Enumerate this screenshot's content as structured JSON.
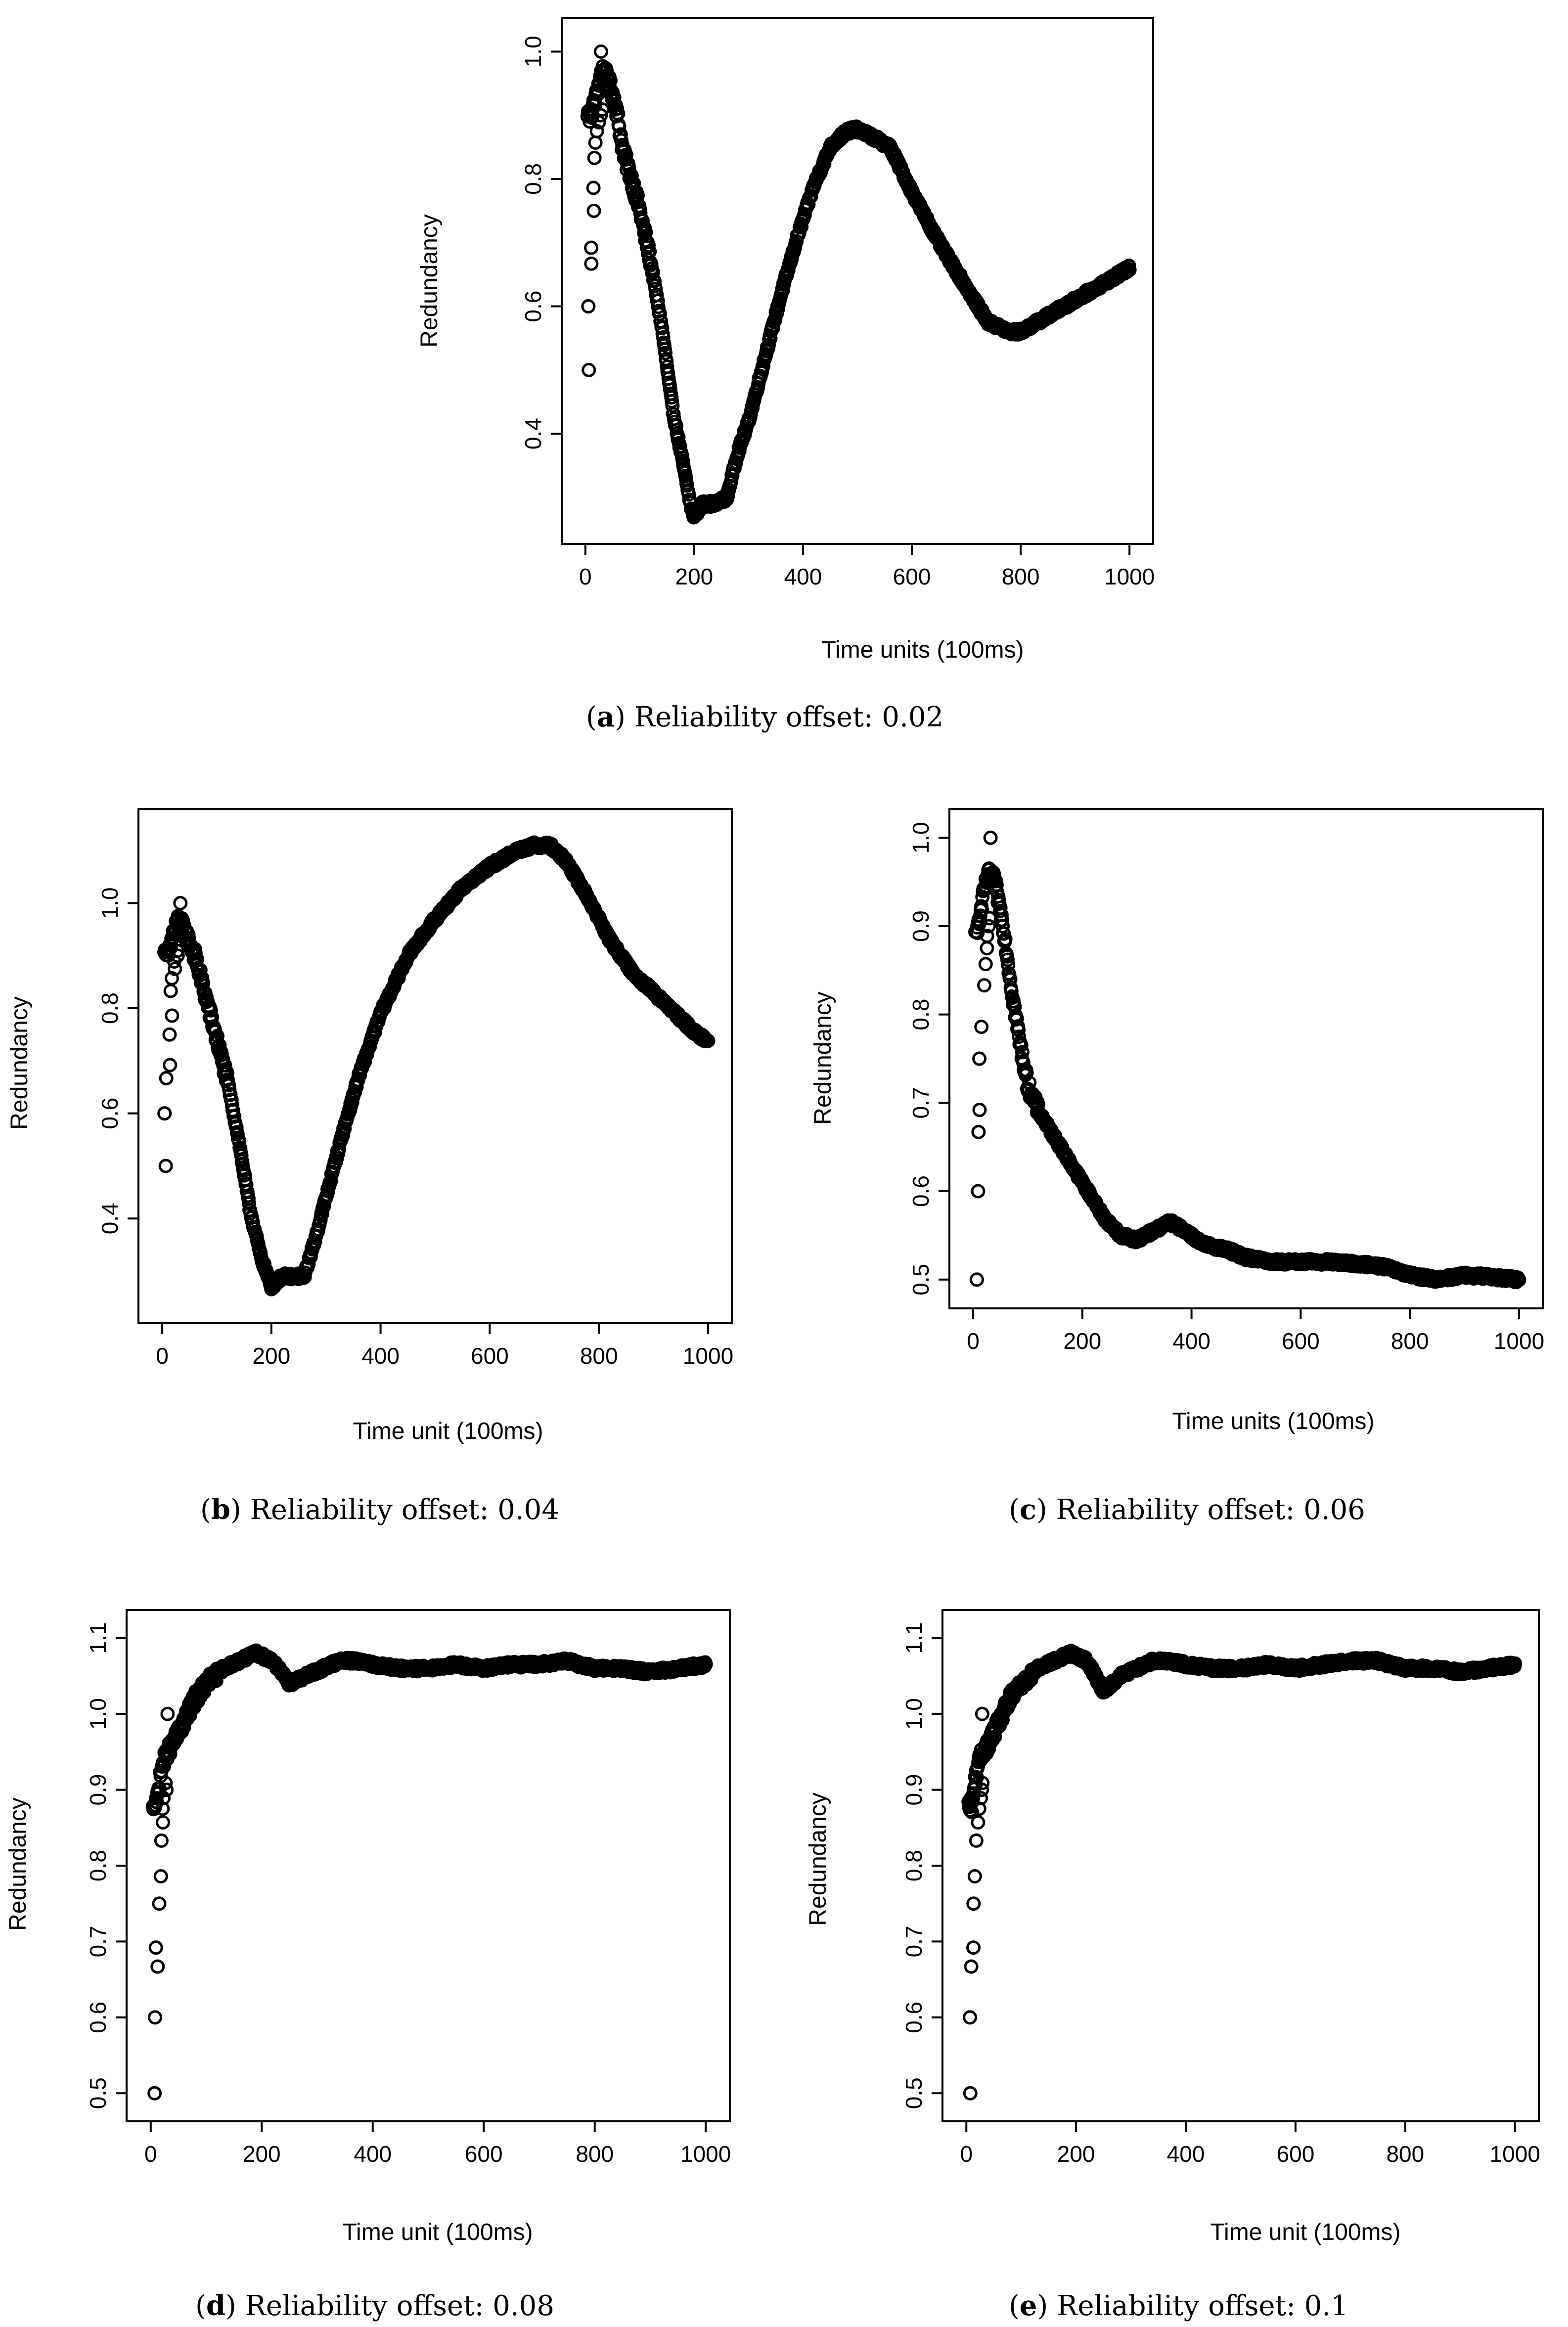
{
  "chart_data": [
    {
      "id": "a",
      "type": "scatter",
      "caption_tag": "a",
      "caption_text": "Reliability offset: 0.02",
      "xlabel": "Time units (100ms)",
      "ylabel": "Redundancy",
      "xlim": [
        0,
        1000
      ],
      "ylim": [
        0.26,
        1.02
      ],
      "xticks": [
        0,
        200,
        400,
        600,
        800,
        1000
      ],
      "yticks": [
        0.4,
        0.6,
        0.8,
        1.0
      ],
      "ytick_labels": [
        "0.4",
        "0.6",
        "0.8",
        "1.0"
      ],
      "early_values": [
        0.5,
        0.6,
        0.667,
        0.692,
        0.75,
        0.786,
        0.833,
        0.857,
        0.875,
        0.889,
        0.9,
        0.909,
        1.0
      ],
      "curve": [
        [
          10,
          0.9
        ],
        [
          20,
          0.93
        ],
        [
          30,
          0.97
        ],
        [
          40,
          0.96
        ],
        [
          55,
          0.92
        ],
        [
          70,
          0.84
        ],
        [
          85,
          0.8
        ],
        [
          100,
          0.75
        ],
        [
          120,
          0.67
        ],
        [
          140,
          0.57
        ],
        [
          160,
          0.44
        ],
        [
          180,
          0.35
        ],
        [
          195,
          0.28
        ],
        [
          200,
          0.27
        ],
        [
          215,
          0.29
        ],
        [
          240,
          0.29
        ],
        [
          260,
          0.3
        ],
        [
          280,
          0.37
        ],
        [
          300,
          0.42
        ],
        [
          330,
          0.52
        ],
        [
          360,
          0.62
        ],
        [
          390,
          0.71
        ],
        [
          420,
          0.79
        ],
        [
          450,
          0.85
        ],
        [
          480,
          0.875
        ],
        [
          500,
          0.878
        ],
        [
          530,
          0.865
        ],
        [
          560,
          0.85
        ],
        [
          600,
          0.78
        ],
        [
          650,
          0.7
        ],
        [
          700,
          0.63
        ],
        [
          740,
          0.575
        ],
        [
          780,
          0.56
        ],
        [
          800,
          0.56
        ],
        [
          840,
          0.58
        ],
        [
          880,
          0.6
        ],
        [
          920,
          0.62
        ],
        [
          960,
          0.64
        ],
        [
          1000,
          0.66
        ]
      ]
    },
    {
      "id": "b",
      "type": "scatter",
      "caption_tag": "b",
      "caption_text": "Reliability offset: 0.04",
      "xlabel": "Time unit (100ms)",
      "ylabel": "Redundancy",
      "xlim": [
        0,
        1000
      ],
      "ylim": [
        0.24,
        1.14
      ],
      "xticks": [
        0,
        200,
        400,
        600,
        800,
        1000
      ],
      "yticks": [
        0.4,
        0.6,
        0.8,
        1.0
      ],
      "ytick_labels": [
        "0.4",
        "0.6",
        "0.8",
        "1.0"
      ],
      "early_values": [
        0.5,
        0.6,
        0.667,
        0.692,
        0.75,
        0.786,
        0.833,
        0.857,
        0.875,
        0.889,
        0.9,
        0.909,
        1.0
      ],
      "curve": [
        [
          10,
          0.9
        ],
        [
          20,
          0.94
        ],
        [
          30,
          0.97
        ],
        [
          40,
          0.95
        ],
        [
          60,
          0.9
        ],
        [
          80,
          0.82
        ],
        [
          100,
          0.74
        ],
        [
          120,
          0.66
        ],
        [
          140,
          0.55
        ],
        [
          160,
          0.42
        ],
        [
          180,
          0.33
        ],
        [
          200,
          0.27
        ],
        [
          220,
          0.29
        ],
        [
          260,
          0.29
        ],
        [
          280,
          0.36
        ],
        [
          300,
          0.44
        ],
        [
          330,
          0.56
        ],
        [
          360,
          0.67
        ],
        [
          400,
          0.79
        ],
        [
          450,
          0.9
        ],
        [
          500,
          0.97
        ],
        [
          550,
          1.03
        ],
        [
          600,
          1.07
        ],
        [
          650,
          1.1
        ],
        [
          680,
          1.11
        ],
        [
          710,
          1.11
        ],
        [
          740,
          1.08
        ],
        [
          780,
          1.01
        ],
        [
          820,
          0.93
        ],
        [
          860,
          0.87
        ],
        [
          900,
          0.83
        ],
        [
          940,
          0.79
        ],
        [
          980,
          0.75
        ],
        [
          1000,
          0.74
        ]
      ]
    },
    {
      "id": "c",
      "type": "scatter",
      "caption_tag": "c",
      "caption_text": "Reliability offset: 0.06",
      "xlabel": "Time units (100ms)",
      "ylabel": "Redundancy",
      "xlim": [
        0,
        1000
      ],
      "ylim": [
        0.49,
        1.01
      ],
      "xticks": [
        0,
        200,
        400,
        600,
        800,
        1000
      ],
      "yticks": [
        0.5,
        0.6,
        0.7,
        0.8,
        0.9,
        1.0
      ],
      "ytick_labels": [
        "0.5",
        "0.6",
        "0.7",
        "0.8",
        "0.9",
        "1.0"
      ],
      "early_values": [
        0.5,
        0.6,
        0.667,
        0.692,
        0.75,
        0.786,
        0.833,
        0.857,
        0.875,
        0.889,
        0.9,
        0.909,
        1.0
      ],
      "curve": [
        [
          10,
          0.9
        ],
        [
          20,
          0.94
        ],
        [
          30,
          0.96
        ],
        [
          40,
          0.95
        ],
        [
          55,
          0.9
        ],
        [
          70,
          0.83
        ],
        [
          85,
          0.77
        ],
        [
          100,
          0.72
        ],
        [
          120,
          0.69
        ],
        [
          150,
          0.66
        ],
        [
          180,
          0.63
        ],
        [
          210,
          0.6
        ],
        [
          240,
          0.57
        ],
        [
          270,
          0.55
        ],
        [
          300,
          0.545
        ],
        [
          330,
          0.555
        ],
        [
          360,
          0.565
        ],
        [
          390,
          0.555
        ],
        [
          420,
          0.54
        ],
        [
          460,
          0.535
        ],
        [
          500,
          0.525
        ],
        [
          550,
          0.52
        ],
        [
          600,
          0.52
        ],
        [
          650,
          0.52
        ],
        [
          700,
          0.518
        ],
        [
          750,
          0.515
        ],
        [
          800,
          0.505
        ],
        [
          850,
          0.5
        ],
        [
          900,
          0.505
        ],
        [
          950,
          0.503
        ],
        [
          1000,
          0.5
        ]
      ]
    },
    {
      "id": "d",
      "type": "scatter",
      "caption_tag": "d",
      "caption_text": "Reliability offset: 0.08",
      "xlabel": "Time unit (100ms)",
      "ylabel": "Redundancy",
      "xlim": [
        0,
        1000
      ],
      "ylim": [
        0.49,
        1.11
      ],
      "xticks": [
        0,
        200,
        400,
        600,
        800,
        1000
      ],
      "yticks": [
        0.5,
        0.6,
        0.7,
        0.8,
        0.9,
        1.0,
        1.1
      ],
      "ytick_labels": [
        "0.5",
        "0.6",
        "0.7",
        "0.8",
        "0.9",
        "1.0",
        "1.1"
      ],
      "early_values": [
        0.5,
        0.6,
        0.667,
        0.692,
        0.75,
        0.786,
        0.833,
        0.857,
        0.875,
        0.889,
        0.9,
        0.909,
        1.0
      ],
      "curve": [
        [
          10,
          0.88
        ],
        [
          20,
          0.93
        ],
        [
          30,
          0.95
        ],
        [
          40,
          0.96
        ],
        [
          60,
          0.99
        ],
        [
          80,
          1.02
        ],
        [
          100,
          1.04
        ],
        [
          130,
          1.06
        ],
        [
          160,
          1.07
        ],
        [
          190,
          1.08
        ],
        [
          220,
          1.07
        ],
        [
          250,
          1.04
        ],
        [
          280,
          1.05
        ],
        [
          310,
          1.06
        ],
        [
          340,
          1.07
        ],
        [
          370,
          1.07
        ],
        [
          400,
          1.065
        ],
        [
          450,
          1.06
        ],
        [
          500,
          1.06
        ],
        [
          550,
          1.065
        ],
        [
          600,
          1.06
        ],
        [
          650,
          1.065
        ],
        [
          700,
          1.065
        ],
        [
          750,
          1.07
        ],
        [
          800,
          1.06
        ],
        [
          850,
          1.06
        ],
        [
          900,
          1.055
        ],
        [
          950,
          1.06
        ],
        [
          1000,
          1.065
        ]
      ]
    },
    {
      "id": "e",
      "type": "scatter",
      "caption_tag": "e",
      "caption_text": "Reliability offset: 0.1",
      "xlabel": "Time unit (100ms)",
      "ylabel": "Redundancy",
      "xlim": [
        0,
        1000
      ],
      "ylim": [
        0.49,
        1.11
      ],
      "xticks": [
        0,
        200,
        400,
        600,
        800,
        1000
      ],
      "yticks": [
        0.5,
        0.6,
        0.7,
        0.8,
        0.9,
        1.0,
        1.1
      ],
      "ytick_labels": [
        "0.5",
        "0.6",
        "0.7",
        "0.8",
        "0.9",
        "1.0",
        "1.1"
      ],
      "early_values": [
        0.5,
        0.6,
        0.667,
        0.692,
        0.75,
        0.786,
        0.833,
        0.857,
        0.875,
        0.889,
        0.9,
        0.909,
        1.0
      ],
      "curve": [
        [
          10,
          0.88
        ],
        [
          20,
          0.93
        ],
        [
          30,
          0.95
        ],
        [
          40,
          0.96
        ],
        [
          60,
          0.99
        ],
        [
          80,
          1.02
        ],
        [
          100,
          1.04
        ],
        [
          130,
          1.06
        ],
        [
          160,
          1.07
        ],
        [
          190,
          1.08
        ],
        [
          220,
          1.07
        ],
        [
          250,
          1.03
        ],
        [
          280,
          1.05
        ],
        [
          310,
          1.06
        ],
        [
          340,
          1.07
        ],
        [
          370,
          1.07
        ],
        [
          400,
          1.065
        ],
        [
          450,
          1.06
        ],
        [
          500,
          1.06
        ],
        [
          550,
          1.065
        ],
        [
          600,
          1.06
        ],
        [
          650,
          1.065
        ],
        [
          700,
          1.07
        ],
        [
          750,
          1.07
        ],
        [
          800,
          1.06
        ],
        [
          850,
          1.06
        ],
        [
          900,
          1.055
        ],
        [
          950,
          1.06
        ],
        [
          1000,
          1.065
        ]
      ]
    }
  ]
}
